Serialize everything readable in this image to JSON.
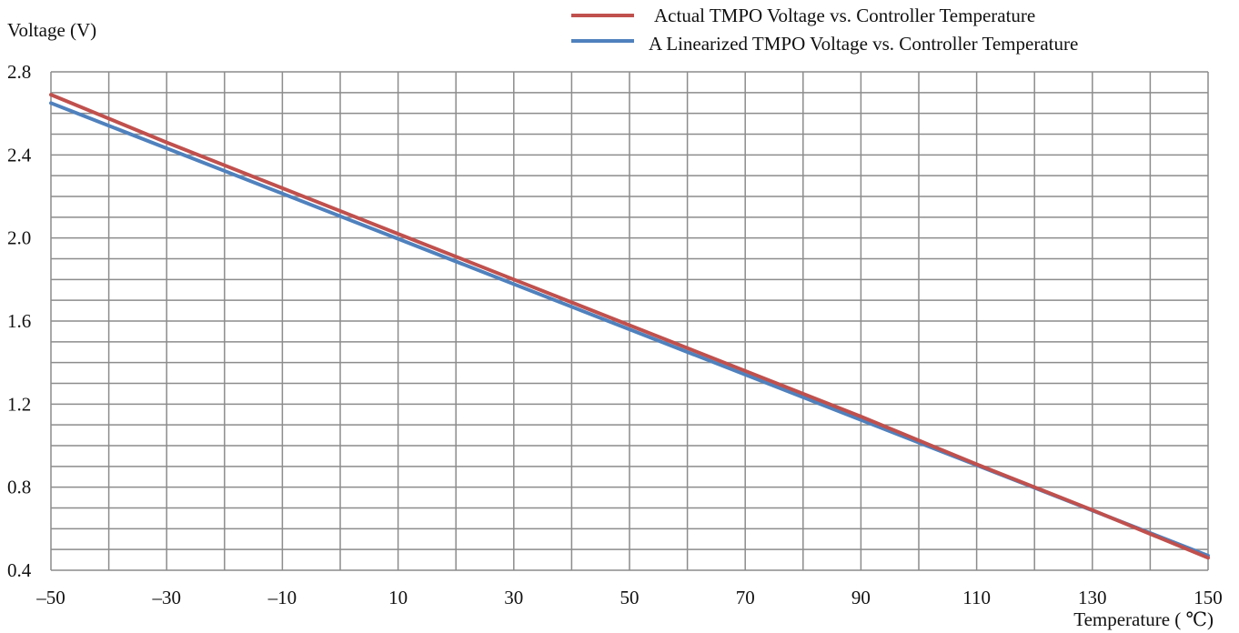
{
  "chart_data": {
    "type": "line",
    "ylabel": "Voltage (V)",
    "xlabel": "Temperature ( ℃)",
    "xlim": [
      -50,
      150
    ],
    "ylim": [
      0.4,
      2.8
    ],
    "x_ticks": [
      -50,
      -30,
      -10,
      10,
      30,
      50,
      70,
      90,
      110,
      130,
      150
    ],
    "x_tick_labels": [
      "–50",
      "–30",
      "–10",
      "10",
      "30",
      "50",
      "70",
      "90",
      "110",
      "130",
      "150"
    ],
    "y_ticks": [
      0.4,
      0.8,
      1.2,
      1.6,
      2.0,
      2.4,
      2.8
    ],
    "y_tick_labels": [
      "0.4",
      "0.8",
      "1.2",
      "1.6",
      "2.0",
      "2.4",
      "2.8"
    ],
    "grid": true,
    "legend_position": "top-right",
    "series": [
      {
        "name": "Actual TMPO Voltage vs. Controller Temperature",
        "color": "#c0504d",
        "x": [
          -50,
          -30,
          -10,
          10,
          30,
          50,
          70,
          90,
          110,
          130,
          150
        ],
        "y": [
          2.69,
          2.46,
          2.24,
          2.02,
          1.8,
          1.58,
          1.36,
          1.14,
          0.91,
          0.69,
          0.46
        ]
      },
      {
        "name": "A Linearized TMPO Voltage vs. Controller Temperature",
        "color": "#4f81bd",
        "x": [
          -50,
          150
        ],
        "y": [
          2.65,
          0.47
        ]
      }
    ]
  }
}
